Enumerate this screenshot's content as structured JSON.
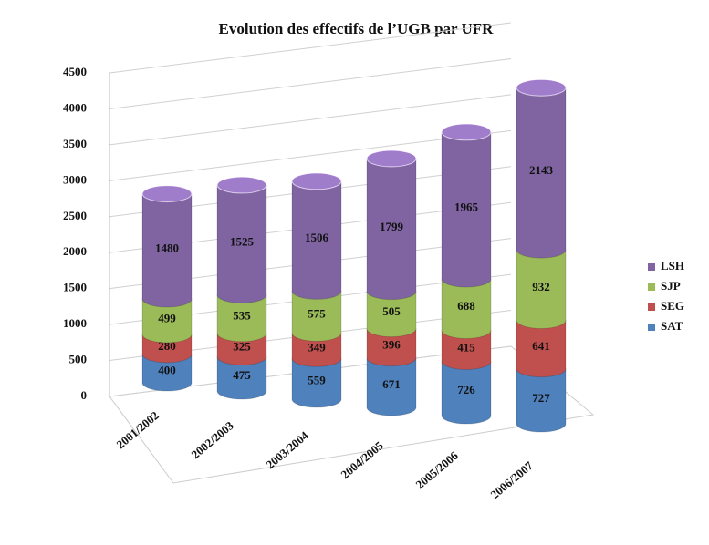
{
  "chart_data": {
    "type": "bar",
    "stacked": true,
    "title": "Evolution des effectifs de l’UGB par UFR",
    "categories": [
      "2001/2002",
      "2002/2003",
      "2003/2004",
      "2004/2005",
      "2005/2006",
      "2006/2007"
    ],
    "series": [
      {
        "name": "SAT",
        "color": "#4f81bd",
        "values": [
          400,
          475,
          559,
          671,
          726,
          727
        ]
      },
      {
        "name": "SEG",
        "color": "#c0504d",
        "values": [
          280,
          325,
          349,
          396,
          415,
          641
        ]
      },
      {
        "name": "SJP",
        "color": "#9bbb59",
        "values": [
          499,
          535,
          575,
          505,
          688,
          932
        ]
      },
      {
        "name": "LSH",
        "color": "#8064a2",
        "values": [
          1480,
          1525,
          1506,
          1799,
          1965,
          2143
        ]
      }
    ],
    "ylim": [
      0,
      4500
    ],
    "yticks": [
      0,
      500,
      1000,
      1500,
      2000,
      2500,
      3000,
      3500,
      4000,
      4500
    ],
    "grid": true,
    "legend": "right"
  }
}
